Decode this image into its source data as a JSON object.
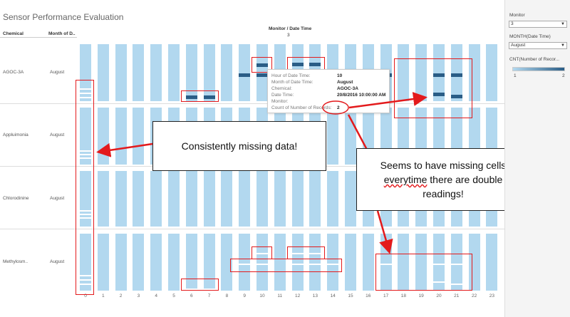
{
  "title": "Sensor Performance Evaluation",
  "headers": {
    "chemical": "Chemical",
    "month": "Month of D..",
    "columns_title": "Monitor / Date Time",
    "monitor_value": "3"
  },
  "rows": [
    {
      "chemical": "AGOC-3A",
      "month": "August"
    },
    {
      "chemical": "Appluimonia",
      "month": "August"
    },
    {
      "chemical": "Chlorodinine",
      "month": "August"
    },
    {
      "chemical": "Methylosm..",
      "month": "August"
    }
  ],
  "x_ticks": [
    "0",
    "1",
    "2",
    "3",
    "4",
    "5",
    "6",
    "7",
    "8",
    "9",
    "10",
    "11",
    "12",
    "13",
    "14",
    "15",
    "16",
    "17",
    "18",
    "19",
    "20",
    "21",
    "22",
    "23"
  ],
  "tooltip": {
    "rows": [
      {
        "key": "Hour of Date Time:",
        "value": "10"
      },
      {
        "key": "Month of Date Time:",
        "value": "August"
      },
      {
        "key": "Chemical:",
        "value": "AGOC-3A"
      },
      {
        "key": "Date Time:",
        "value": "20/8/2016 10:00:00 AM"
      },
      {
        "key": "Monitor:",
        "value": ""
      },
      {
        "key": "Count of Number of Records:",
        "value": "2"
      }
    ]
  },
  "callouts": {
    "missing": "Consistently missing data!",
    "double_line1": "Seems to have missing cells",
    "double_word": "everytime",
    "double_line2": " there are double",
    "double_line3": "readings!"
  },
  "sidebar": {
    "monitor_label": "Monitor",
    "monitor_value": "3",
    "month_label": "MONTH(Date Time)",
    "month_value": "August",
    "legend_label": "CNT(Number of Recor...",
    "legend_min": "1",
    "legend_max": "2"
  },
  "colors": {
    "bar": "#b2d8ef",
    "double": "#2a5d86",
    "highlight": "#e31a1c"
  }
}
